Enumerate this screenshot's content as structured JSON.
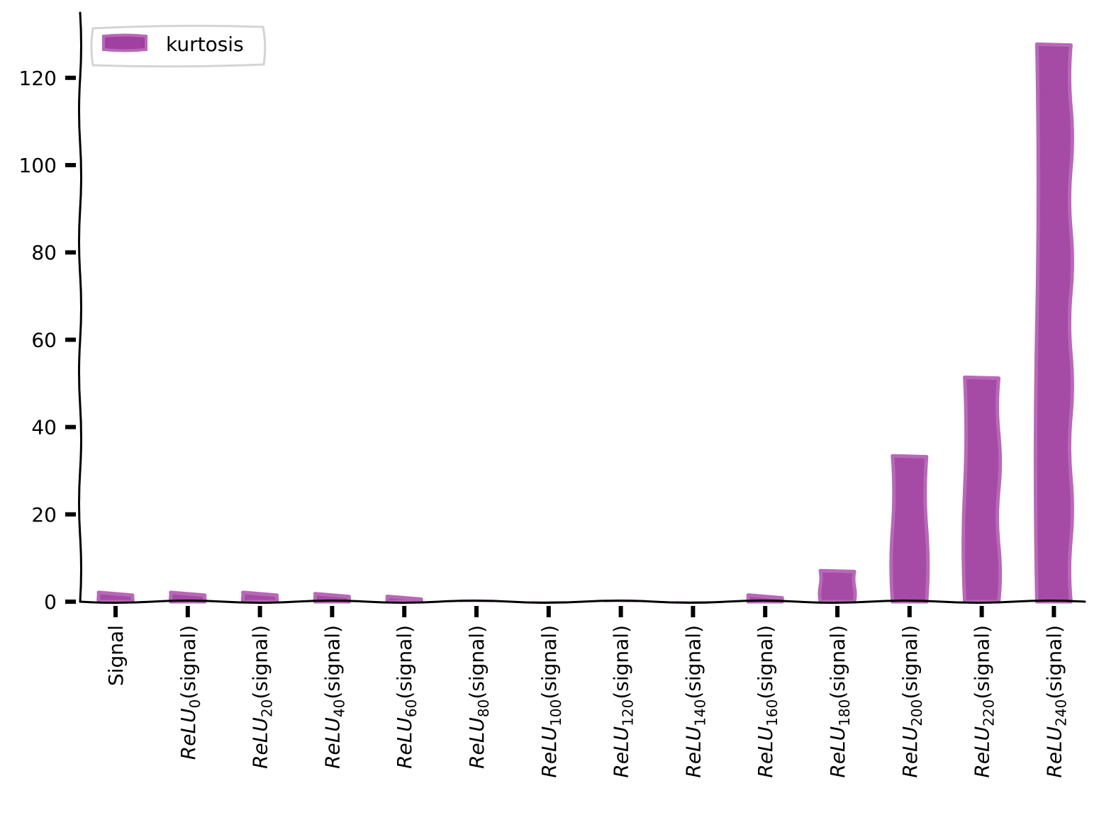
{
  "chart_data": {
    "type": "bar",
    "title": "",
    "xlabel": "",
    "ylabel": "",
    "ylim": [
      0,
      135
    ],
    "yticks": [
      0,
      20,
      40,
      60,
      80,
      100,
      120
    ],
    "grid": false,
    "legend": {
      "position": "top-left",
      "entries": [
        "kurtosis"
      ]
    },
    "categories": [
      {
        "label": "Signal"
      },
      {
        "base": "ReLU",
        "sub": "0",
        "suffix": "(signal)"
      },
      {
        "base": "ReLU",
        "sub": "20",
        "suffix": "(signal)"
      },
      {
        "base": "ReLU",
        "sub": "40",
        "suffix": "(signal)"
      },
      {
        "base": "ReLU",
        "sub": "60",
        "suffix": "(signal)"
      },
      {
        "base": "ReLU",
        "sub": "80",
        "suffix": "(signal)"
      },
      {
        "base": "ReLU",
        "sub": "100",
        "suffix": "(signal)"
      },
      {
        "base": "ReLU",
        "sub": "120",
        "suffix": "(signal)"
      },
      {
        "base": "ReLU",
        "sub": "140",
        "suffix": "(signal)"
      },
      {
        "base": "ReLU",
        "sub": "160",
        "suffix": "(signal)"
      },
      {
        "base": "ReLU",
        "sub": "180",
        "suffix": "(signal)"
      },
      {
        "base": "ReLU",
        "sub": "200",
        "suffix": "(signal)"
      },
      {
        "base": "ReLU",
        "sub": "220",
        "suffix": "(signal)"
      },
      {
        "base": "ReLU",
        "sub": "240",
        "suffix": "(signal)"
      }
    ],
    "series": [
      {
        "name": "kurtosis",
        "color": "#a040a0",
        "values": [
          1.8,
          1.8,
          1.8,
          1.5,
          0.9,
          0.0,
          -0.2,
          -0.2,
          -0.3,
          1.2,
          7.0,
          33.3,
          51.3,
          127.6
        ]
      }
    ]
  }
}
